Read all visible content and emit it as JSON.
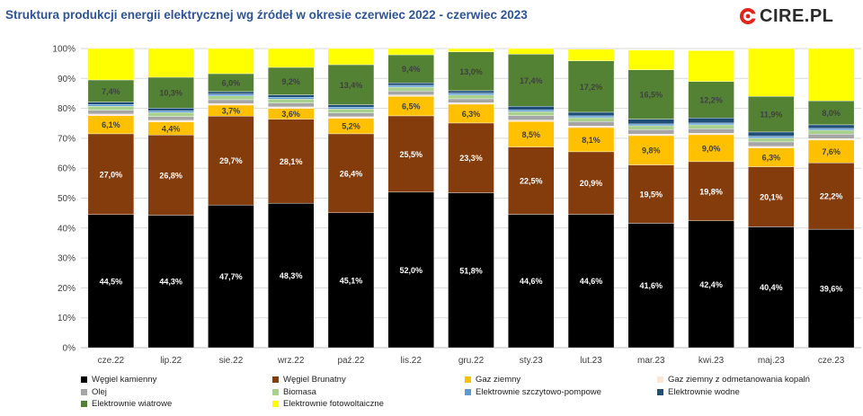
{
  "title": "Struktura produkcji energii elektrycznej wg źródeł w okresie czerwiec 2022 - czerwiec 2023",
  "logo": {
    "text": "CIRE.PL",
    "icon": "cire-logo-icon"
  },
  "chart_data": {
    "type": "bar",
    "stacked": true,
    "categories": [
      "cze.22",
      "lip.22",
      "sie.22",
      "wrz.22",
      "paź.22",
      "lis.22",
      "gru.22",
      "sty.23",
      "lut.23",
      "mar.23",
      "kwi.23",
      "maj.23",
      "cze.23"
    ],
    "yticks": [
      "0%",
      "10%",
      "20%",
      "30%",
      "40%",
      "50%",
      "60%",
      "70%",
      "80%",
      "90%",
      "100%"
    ],
    "ylim": [
      0,
      100
    ],
    "grid": true,
    "legend_position": "bottom",
    "series": [
      {
        "name": "Węgiel kamienny",
        "color": "#000000",
        "values": [
          44.5,
          44.3,
          47.7,
          48.3,
          45.1,
          52.0,
          51.8,
          44.6,
          44.6,
          41.6,
          42.4,
          40.4,
          39.6
        ],
        "labels": [
          "44,5%",
          "44,3%",
          "47,7%",
          "48,3%",
          "45,1%",
          "52,0%",
          "51,8%",
          "44,6%",
          "44,6%",
          "41,6%",
          "42,4%",
          "40,4%",
          "39,6%"
        ]
      },
      {
        "name": "Węgiel Brunatny",
        "color": "#843c0c",
        "values": [
          27.0,
          26.8,
          29.7,
          28.1,
          26.4,
          25.5,
          23.3,
          22.5,
          20.9,
          19.5,
          19.8,
          20.1,
          22.2
        ],
        "labels": [
          "27,0%",
          "26,8%",
          "29,7%",
          "28,1%",
          "26,4%",
          "25,5%",
          "23,3%",
          "22,5%",
          "20,9%",
          "19,5%",
          "19,8%",
          "20,1%",
          "22,2%"
        ]
      },
      {
        "name": "Gaz  ziemny",
        "color": "#ffc000",
        "values": [
          6.1,
          4.4,
          3.7,
          3.6,
          5.2,
          6.5,
          6.3,
          8.5,
          8.1,
          9.8,
          9.0,
          6.3,
          7.6
        ],
        "labels": [
          "6,1%",
          "4,4%",
          "3,7%",
          "3,6%",
          "5,2%",
          "6,5%",
          "6,3%",
          "8,5%",
          "8,1%",
          "9,8%",
          "9,0%",
          "6,3%",
          "7,6%"
        ]
      },
      {
        "name": "Gaz ziemny z odmetanowania kopalń",
        "color": "#fbe5d6",
        "values": [
          0.5,
          0.5,
          0.5,
          0.5,
          0.5,
          0.5,
          0.5,
          0.5,
          0.5,
          0.5,
          0.5,
          0.5,
          0.5
        ]
      },
      {
        "name": "Olej",
        "color": "#a5a5a5",
        "values": [
          1.3,
          1.3,
          1.3,
          1.3,
          1.3,
          1.3,
          1.3,
          1.5,
          1.5,
          1.5,
          1.5,
          1.5,
          1.5
        ]
      },
      {
        "name": "Biomasa",
        "color": "#a9d18e",
        "values": [
          1.3,
          1.3,
          1.3,
          1.3,
          1.3,
          1.3,
          1.3,
          1.3,
          1.3,
          1.3,
          1.3,
          1.3,
          1.3
        ]
      },
      {
        "name": "Elektrownie szczytowo-pompowe",
        "color": "#5b9bd5",
        "values": [
          0.6,
          0.6,
          0.6,
          0.6,
          0.6,
          0.6,
          0.6,
          0.6,
          0.6,
          0.6,
          0.6,
          0.6,
          0.6
        ]
      },
      {
        "name": "Elektrownie wodne",
        "color": "#1f4e79",
        "values": [
          0.8,
          0.9,
          0.8,
          0.8,
          0.8,
          0.8,
          0.8,
          1.2,
          1.2,
          1.6,
          1.7,
          1.4,
          1.2
        ]
      },
      {
        "name": "Elektrownie wiatrowe",
        "color": "#548235",
        "values": [
          7.4,
          10.3,
          6.0,
          9.2,
          13.4,
          9.4,
          13.0,
          17.4,
          17.2,
          16.5,
          12.2,
          11.9,
          8.0
        ],
        "labels": [
          "7,4%",
          "10,3%",
          "6,0%",
          "9,2%",
          "13,4%",
          "9,4%",
          "13,0%",
          "17,4%",
          "17,2%",
          "16,5%",
          "12,2%",
          "11,9%",
          "8,0%"
        ]
      },
      {
        "name": "Elektrownie fotowoltaiczne",
        "color": "#ffff00",
        "values": [
          10.5,
          9.6,
          8.4,
          6.3,
          5.4,
          2.1,
          1.1,
          1.9,
          3.9,
          6.6,
          10.3,
          16.0,
          17.5
        ]
      }
    ]
  }
}
